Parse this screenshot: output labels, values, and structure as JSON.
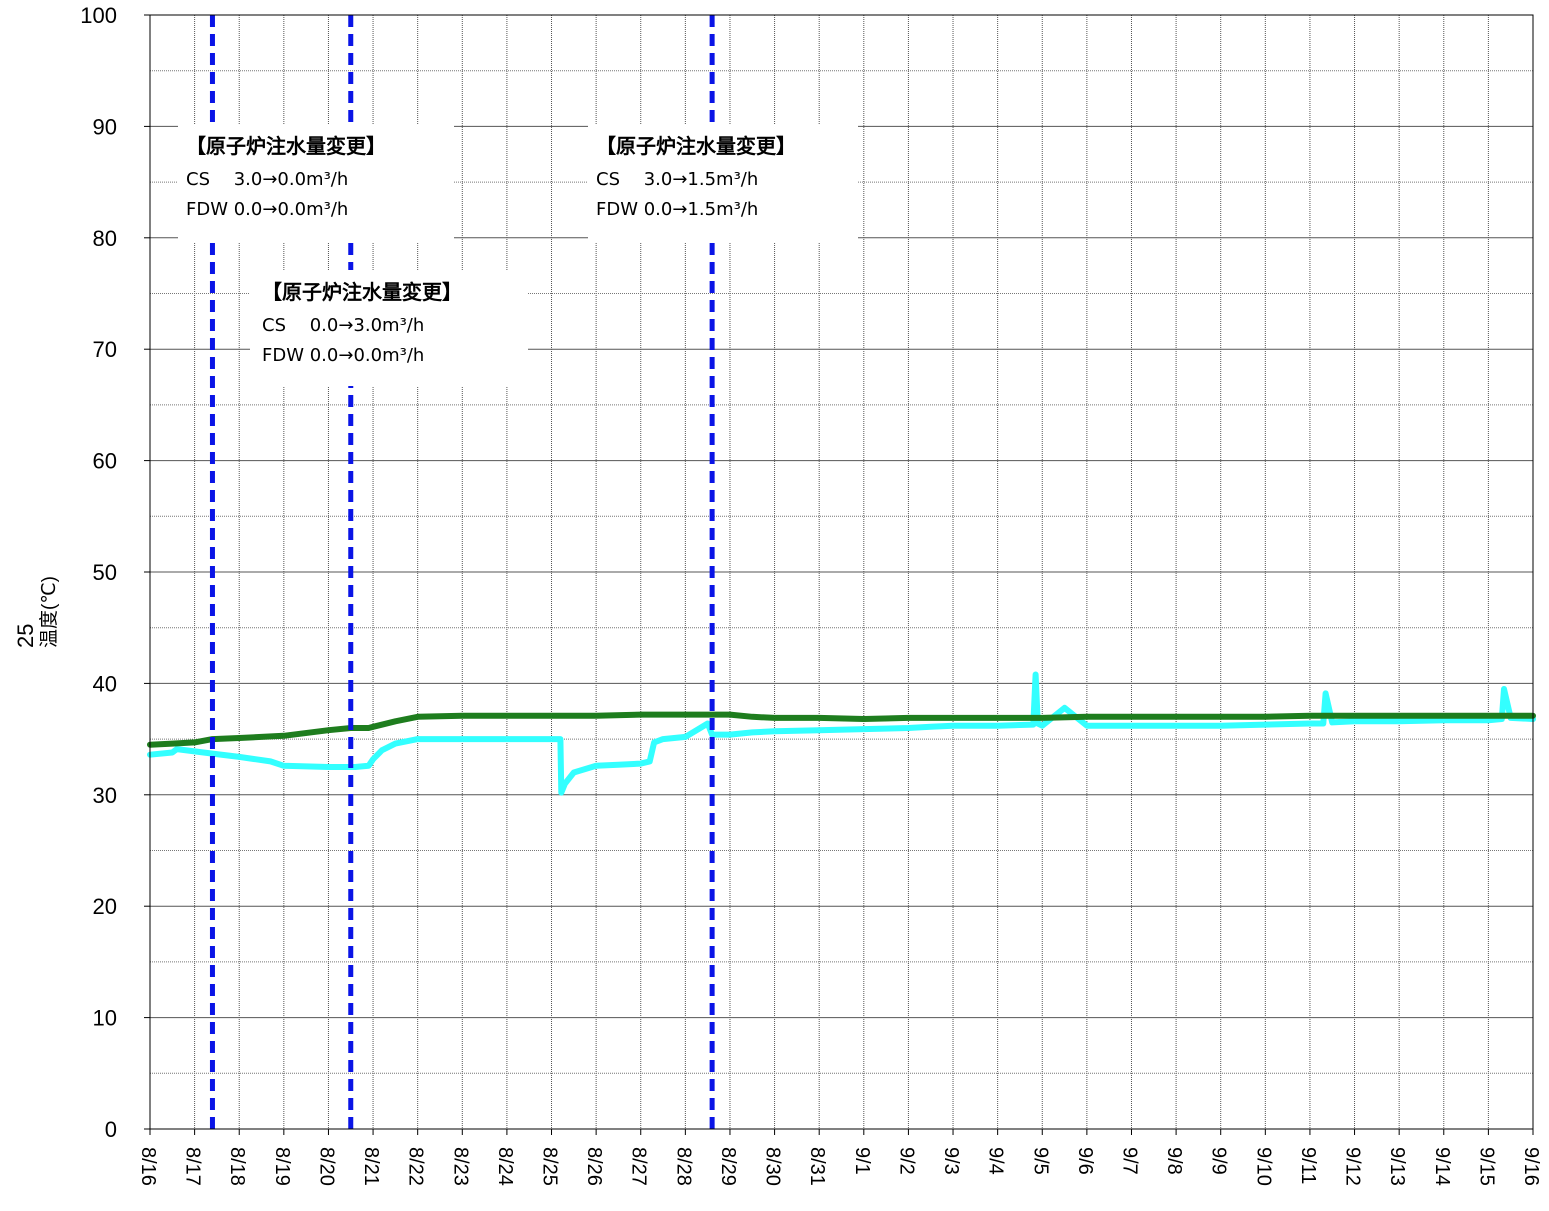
{
  "chart_data": {
    "type": "line",
    "title": "",
    "xlabel": "",
    "ylabel": "温度(℃)",
    "ylabel_prefix": "25",
    "ylim": [
      0,
      100
    ],
    "yticks": [
      0,
      10,
      20,
      30,
      40,
      50,
      60,
      70,
      80,
      90,
      100
    ],
    "x_categories": [
      "8/16",
      "8/17",
      "8/18",
      "8/19",
      "8/20",
      "8/21",
      "8/22",
      "8/23",
      "8/24",
      "8/25",
      "8/26",
      "8/27",
      "8/28",
      "8/29",
      "8/30",
      "8/31",
      "9/1",
      "9/2",
      "9/3",
      "9/4",
      "9/5",
      "9/6",
      "9/7",
      "9/8",
      "9/9",
      "9/10",
      "9/11",
      "9/12",
      "9/13",
      "9/14",
      "9/15",
      "9/16"
    ],
    "grid": true,
    "series": [
      {
        "color": "#1e7d1e",
        "x": [
          0,
          0.5,
          1,
          1.4,
          2,
          3,
          4,
          4.5,
          4.9,
          5,
          5.5,
          6,
          7,
          8,
          9,
          10,
          11,
          12,
          13,
          13.5,
          14,
          15,
          16,
          17,
          18,
          19,
          20,
          21,
          22,
          23,
          24,
          25,
          26,
          27,
          28,
          29,
          30,
          31
        ],
        "y": [
          34.5,
          34.6,
          34.7,
          35.0,
          35.1,
          35.3,
          35.8,
          36.0,
          36.0,
          36.1,
          36.6,
          37.0,
          37.1,
          37.1,
          37.1,
          37.1,
          37.2,
          37.2,
          37.2,
          37.0,
          36.9,
          36.9,
          36.8,
          36.9,
          36.9,
          36.9,
          36.9,
          37.0,
          37.0,
          37.0,
          37.0,
          37.0,
          37.1,
          37.1,
          37.1,
          37.1,
          37.1,
          37.1
        ]
      },
      {
        "color": "#33ffff",
        "x": [
          0,
          0.5,
          0.6,
          1,
          1.4,
          2,
          2.7,
          3,
          4,
          4.6,
          4.9,
          5,
          5.2,
          5.5,
          6,
          7,
          8,
          9,
          9.2,
          9.22,
          9.3,
          9.5,
          10,
          10.5,
          11,
          11.2,
          11.3,
          11.5,
          12,
          12.5,
          12.6,
          13,
          13.5,
          14,
          15,
          16,
          17,
          17.5,
          18,
          19,
          19.8,
          19.85,
          19.9,
          20,
          20.5,
          21,
          22,
          23,
          24,
          25,
          26,
          26.3,
          26.35,
          26.5,
          27,
          28,
          29,
          30,
          30.3,
          30.35,
          30.5,
          31
        ],
        "y": [
          33.6,
          33.8,
          34.1,
          33.9,
          33.7,
          33.4,
          33.0,
          32.6,
          32.5,
          32.5,
          32.6,
          33.2,
          34.0,
          34.6,
          35.0,
          35.0,
          35.0,
          35.0,
          35.0,
          30.2,
          31.0,
          32.0,
          32.6,
          32.7,
          32.8,
          33.0,
          34.7,
          35.0,
          35.2,
          36.4,
          35.4,
          35.4,
          35.6,
          35.7,
          35.8,
          35.9,
          36.0,
          36.1,
          36.2,
          36.2,
          36.3,
          40.8,
          36.4,
          36.2,
          37.8,
          36.2,
          36.2,
          36.2,
          36.2,
          36.3,
          36.4,
          36.4,
          39.1,
          36.5,
          36.6,
          36.6,
          36.7,
          36.7,
          36.8,
          39.5,
          36.9,
          36.8
        ]
      }
    ],
    "event_lines_x": [
      1.4,
      4.5,
      12.6
    ],
    "annotations": [
      {
        "title": "【原子炉注水量変更】",
        "lines": [
          "CS　 3.0→0.0m³/h",
          "FDW  0.0→0.0m³/h"
        ]
      },
      {
        "title": "【原子炉注水量変更】",
        "lines": [
          "CS　 0.0→3.0m³/h",
          "FDW  0.0→0.0m³/h"
        ]
      },
      {
        "title": "【原子炉注水量変更】",
        "lines": [
          "CS　 3.0→1.5m³/h",
          "FDW  0.0→1.5m³/h"
        ]
      }
    ]
  }
}
